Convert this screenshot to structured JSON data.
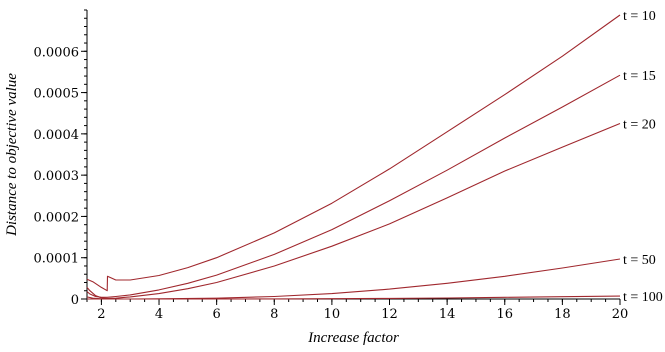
{
  "chart_data": {
    "type": "line",
    "xlabel": "Increase factor",
    "ylabel": "Distance to objective value",
    "xlim": [
      1.5,
      20
    ],
    "ylim": [
      0,
      0.0007
    ],
    "x_ticks": [
      2,
      4,
      6,
      8,
      10,
      12,
      14,
      16,
      18,
      20
    ],
    "y_ticks": [
      0,
      0.0001,
      0.0002,
      0.0003,
      0.0004,
      0.0005,
      0.0006
    ],
    "y_tick_labels": [
      "0",
      "0.0001",
      "0.0002",
      "0.0003",
      "0.0004",
      "0.0005",
      "0.0006"
    ],
    "grid": false,
    "line_color": "#a0282e",
    "series": [
      {
        "name": "t = 10",
        "x": [
          1.5,
          1.7,
          2.0,
          2.2,
          2.21,
          2.5,
          3,
          4,
          5,
          6,
          8,
          10,
          12,
          14,
          16,
          18,
          20
        ],
        "y": [
          4.8e-05,
          4.2e-05,
          2.8e-05,
          2e-05,
          5.5e-05,
          4.6e-05,
          4.6e-05,
          5.7e-05,
          7.6e-05,
          0.0001,
          0.00016,
          0.000232,
          0.000315,
          0.000405,
          0.000495,
          0.000588,
          0.000688
        ]
      },
      {
        "name": "t = 15",
        "x": [
          1.5,
          1.6,
          1.8,
          2.0,
          2.2,
          2.5,
          3,
          4,
          5,
          6,
          8,
          10,
          12,
          14,
          16,
          18,
          20
        ],
        "y": [
          1.8e-05,
          1.2e-05,
          6e-06,
          4e-06,
          4e-06,
          6e-06,
          1e-05,
          2.2e-05,
          3.8e-05,
          5.8e-05,
          0.000108,
          0.000168,
          0.000238,
          0.000312,
          0.00039,
          0.000465,
          0.000542
        ]
      },
      {
        "name": "t = 20",
        "x": [
          1.5,
          1.6,
          1.8,
          2.0,
          2.2,
          2.5,
          3,
          4,
          5,
          6,
          8,
          10,
          12,
          14,
          16,
          18,
          20
        ],
        "y": [
          2.8e-05,
          2e-05,
          8e-06,
          3e-06,
          1e-06,
          2e-06,
          5e-06,
          1.3e-05,
          2.5e-05,
          4e-05,
          8e-05,
          0.000128,
          0.000182,
          0.000245,
          0.00031,
          0.000368,
          0.000425
        ]
      },
      {
        "name": "t = 50",
        "x": [
          1.5,
          1.7,
          2.0,
          2.5,
          3,
          4,
          6,
          8,
          10,
          12,
          14,
          16,
          18,
          20
        ],
        "y": [
          5e-06,
          2e-06,
          5e-07,
          0.0,
          0.0,
          5e-07,
          2e-06,
          6e-06,
          1.3e-05,
          2.4e-05,
          3.8e-05,
          5.5e-05,
          7.5e-05,
          9.7e-05
        ]
      },
      {
        "name": "t = 100",
        "x": [
          1.5,
          2,
          4,
          6,
          8,
          10,
          12,
          14,
          16,
          18,
          20
        ],
        "y": [
          0.0,
          0.0,
          0.0,
          0.0,
          3e-07,
          8e-07,
          1.5e-06,
          2.5e-06,
          4e-06,
          5.5e-06,
          7e-06
        ]
      }
    ]
  }
}
